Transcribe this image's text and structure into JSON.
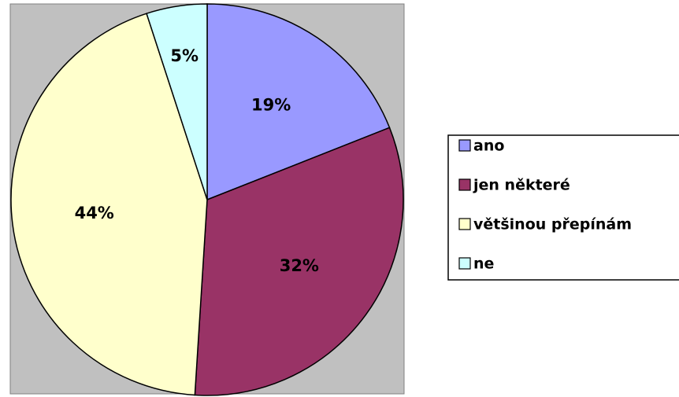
{
  "chart_data": {
    "type": "pie",
    "categories": [
      "ano",
      "jen některé",
      "většinou přepínám",
      "ne"
    ],
    "values": [
      19,
      32,
      44,
      5
    ],
    "value_labels": [
      "19%",
      "32%",
      "44%",
      "5%"
    ],
    "colors": [
      "#9999ff",
      "#993366",
      "#ffffcc",
      "#ccffff"
    ],
    "legend": "right"
  }
}
